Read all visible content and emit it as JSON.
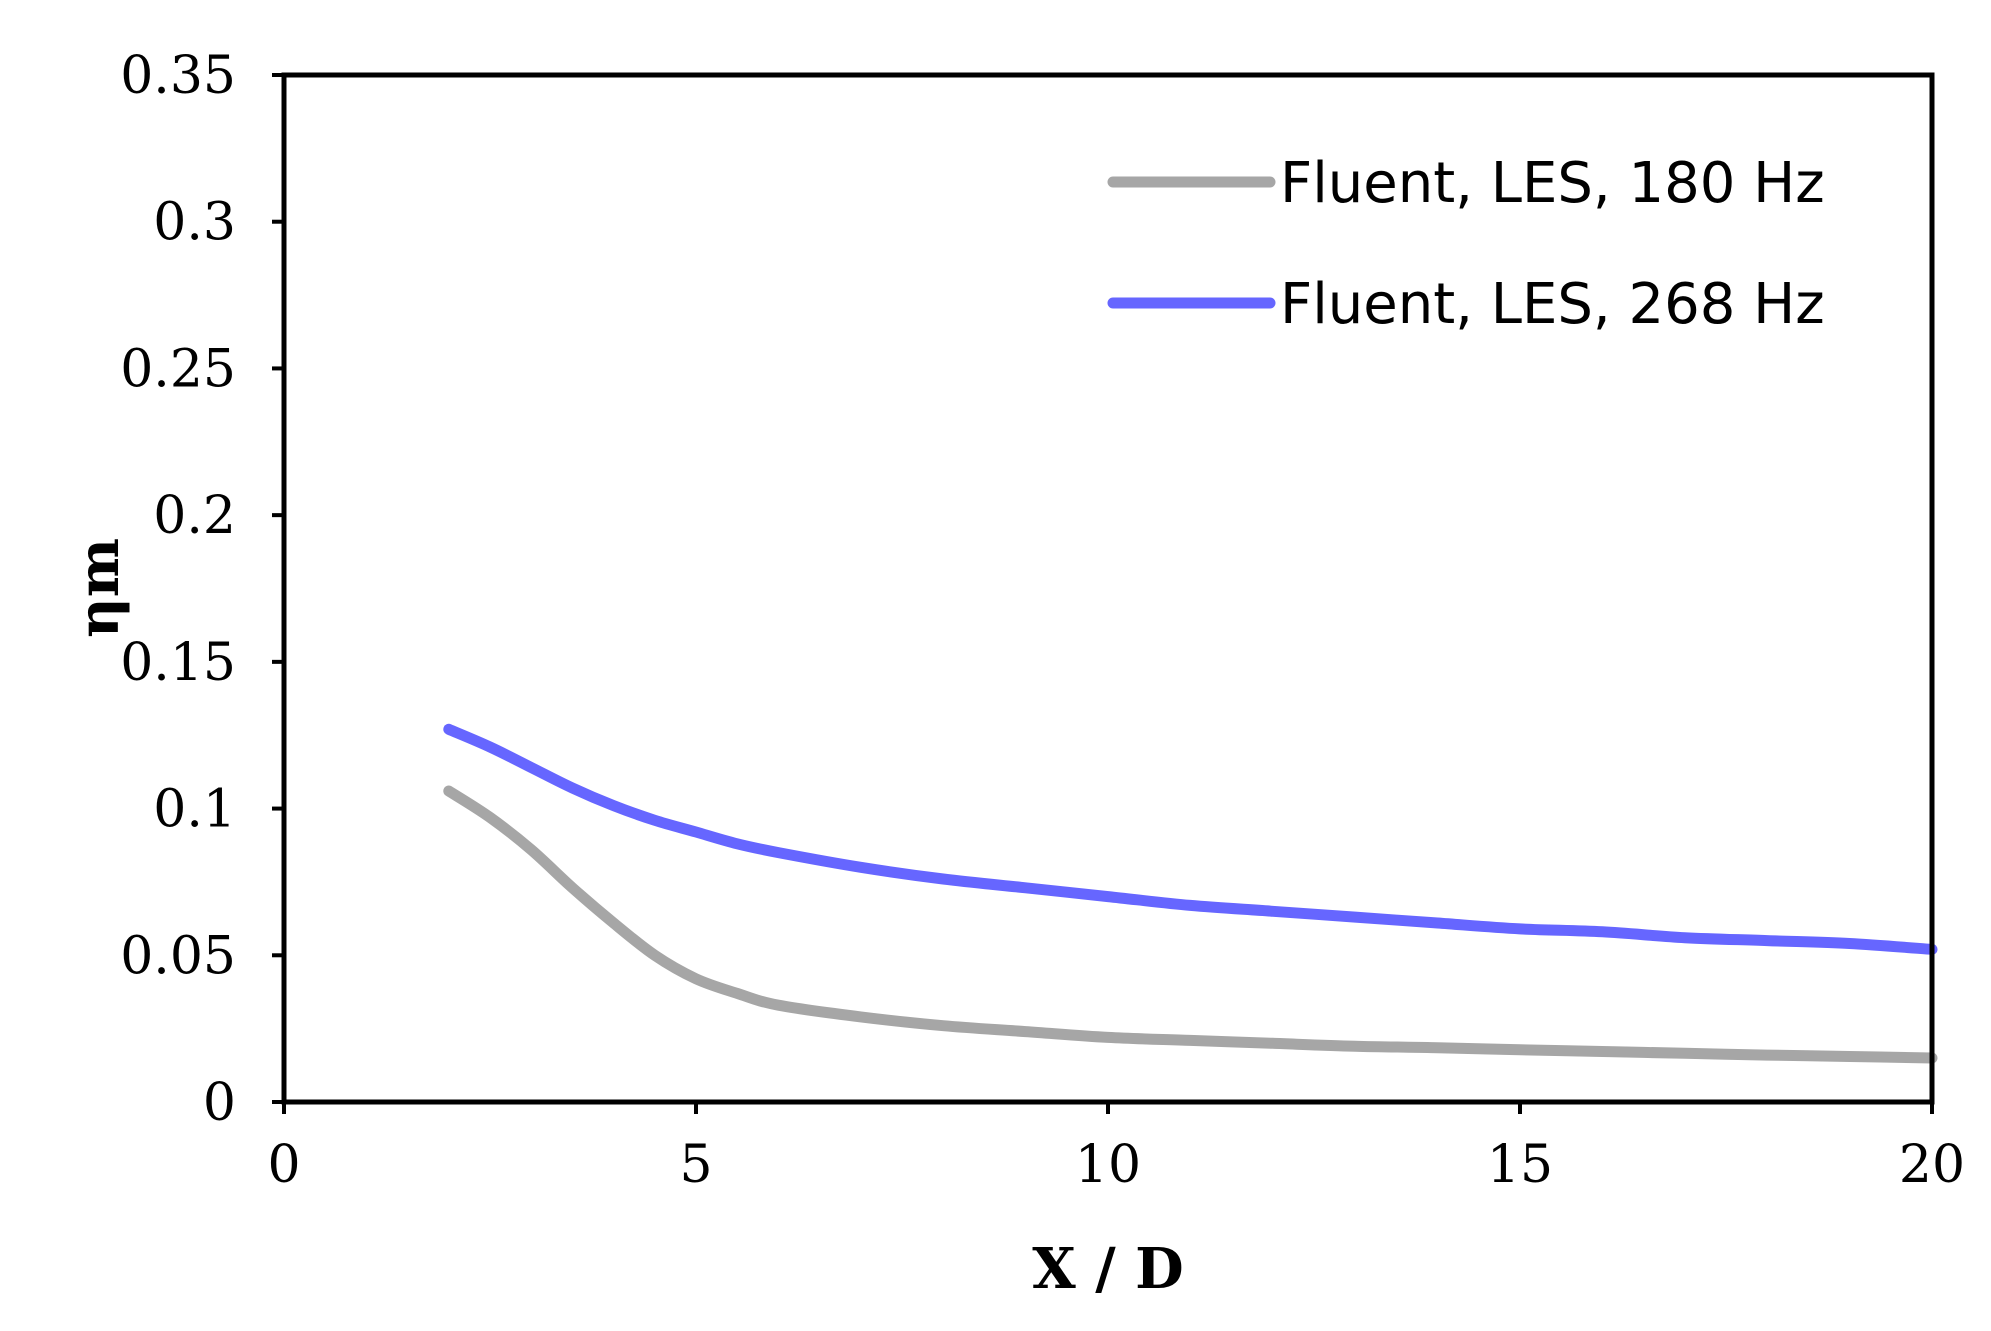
{
  "chart_data": {
    "type": "line",
    "xlabel": "X / D",
    "ylabel": "ηm",
    "xlim": [
      0,
      20
    ],
    "ylim": [
      0,
      0.35
    ],
    "x_ticks": [
      0,
      5,
      10,
      15,
      20
    ],
    "x_tick_labels": [
      "0",
      "5",
      "10",
      "15",
      "20"
    ],
    "y_ticks": [
      0,
      0.05,
      0.1,
      0.15,
      0.2,
      0.25,
      0.3,
      0.35
    ],
    "y_tick_labels": [
      "0",
      "0.05",
      "0.1",
      "0.15",
      "0.2",
      "0.25",
      "0.3",
      "0.35"
    ],
    "grid": false,
    "legend_position": "top-right",
    "series": [
      {
        "name": "Fluent, LES, 180 Hz",
        "color": "#a6a6a6",
        "x": [
          2,
          2.5,
          3,
          3.5,
          4,
          4.5,
          5,
          5.5,
          6,
          7,
          8,
          9,
          10,
          11,
          12,
          13,
          14,
          15,
          16,
          17,
          18,
          19,
          20
        ],
        "y": [
          0.106,
          0.097,
          0.086,
          0.073,
          0.061,
          0.05,
          0.042,
          0.037,
          0.033,
          0.029,
          0.026,
          0.024,
          0.022,
          0.021,
          0.02,
          0.019,
          0.0185,
          0.0178,
          0.0172,
          0.0166,
          0.016,
          0.0155,
          0.015
        ]
      },
      {
        "name": "Fluent, LES, 268 Hz",
        "color": "#6666ff",
        "x": [
          2,
          2.5,
          3,
          3.5,
          4,
          4.5,
          5,
          5.5,
          6,
          7,
          8,
          9,
          10,
          11,
          12,
          13,
          14,
          15,
          16,
          17,
          18,
          19,
          20
        ],
        "y": [
          0.127,
          0.121,
          0.114,
          0.107,
          0.101,
          0.096,
          0.092,
          0.088,
          0.085,
          0.08,
          0.076,
          0.073,
          0.07,
          0.067,
          0.065,
          0.063,
          0.061,
          0.059,
          0.058,
          0.056,
          0.055,
          0.054,
          0.052
        ]
      }
    ]
  }
}
